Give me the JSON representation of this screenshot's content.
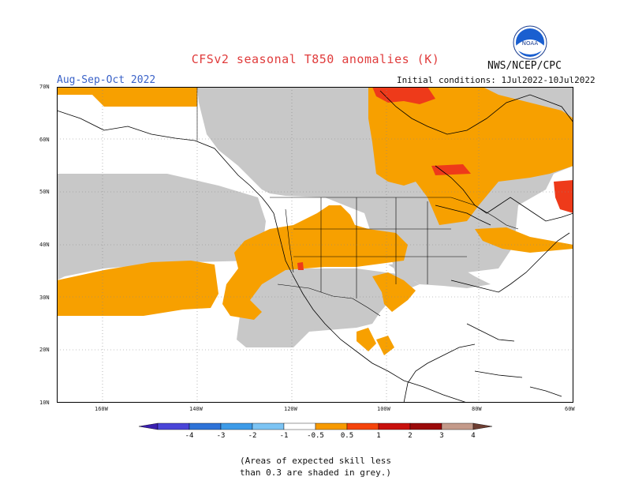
{
  "title": "CFSv2 seasonal T850 anomalies (K)",
  "period": "Aug-Sep-Oct 2022",
  "agency": "NWS/NCEP/CPC",
  "initial_conditions": "Initial conditions: 1Jul2022-10Jul2022",
  "logo": {
    "text": "NOAA",
    "icon": "noaa-logo"
  },
  "lat_labels": [
    "70N",
    "60N",
    "50N",
    "40N",
    "30N",
    "20N",
    "10N"
  ],
  "lon_labels": [
    "160W",
    "140W",
    "120W",
    "100W",
    "80W",
    "60W"
  ],
  "colorbar": {
    "labels": [
      "-4",
      "-3",
      "-2",
      "-1",
      "-0.5",
      "0.5",
      "1",
      "2",
      "3",
      "4"
    ],
    "colors": [
      "#3a1fb0",
      "#4a45d8",
      "#2e73d8",
      "#3d9be8",
      "#7cc4f4",
      "#ffffff",
      "#f79a00",
      "#f5440b",
      "#c8100d",
      "#9b0a0a",
      "#c49a8a",
      "#6e3e32"
    ]
  },
  "legend_note": [
    "(Areas of expected skill less",
    "than 0.3 are shaded in grey.)"
  ],
  "map_colors": {
    "orange": "#f7a000",
    "red": "#ee3a1a",
    "grey": "#c8c8c8",
    "ocean": "#ffffff"
  }
}
